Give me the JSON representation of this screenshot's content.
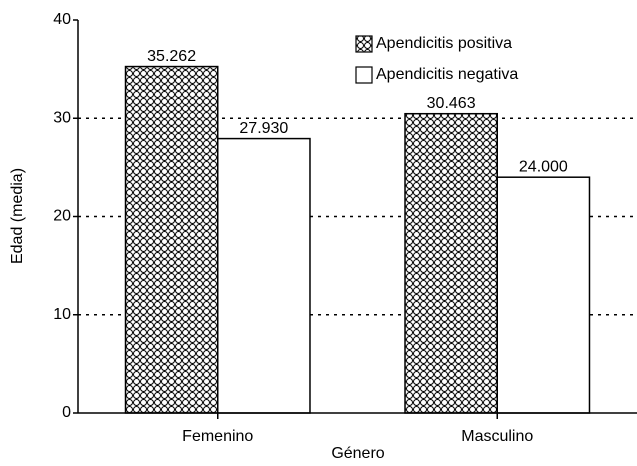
{
  "chart_data": {
    "type": "bar",
    "x_label": "Género",
    "y_label": "Edad (media)",
    "categories": [
      "Femenino",
      "Masculino"
    ],
    "series": [
      {
        "name": "Apendicitis positiva",
        "color": "#000000",
        "pattern": "circles",
        "values": [
          35.262,
          30.463
        ],
        "value_labels": [
          "35.262",
          "30.463"
        ]
      },
      {
        "name": "Apendicitis negativa",
        "color": "#ffffff",
        "values": [
          27.93,
          24
        ],
        "value_labels": [
          "27.930",
          "24.000"
        ]
      }
    ],
    "ylim": [
      0,
      40
    ],
    "yticks": [
      0,
      10,
      20,
      30,
      40
    ],
    "grid": true,
    "legend": "top-right"
  }
}
